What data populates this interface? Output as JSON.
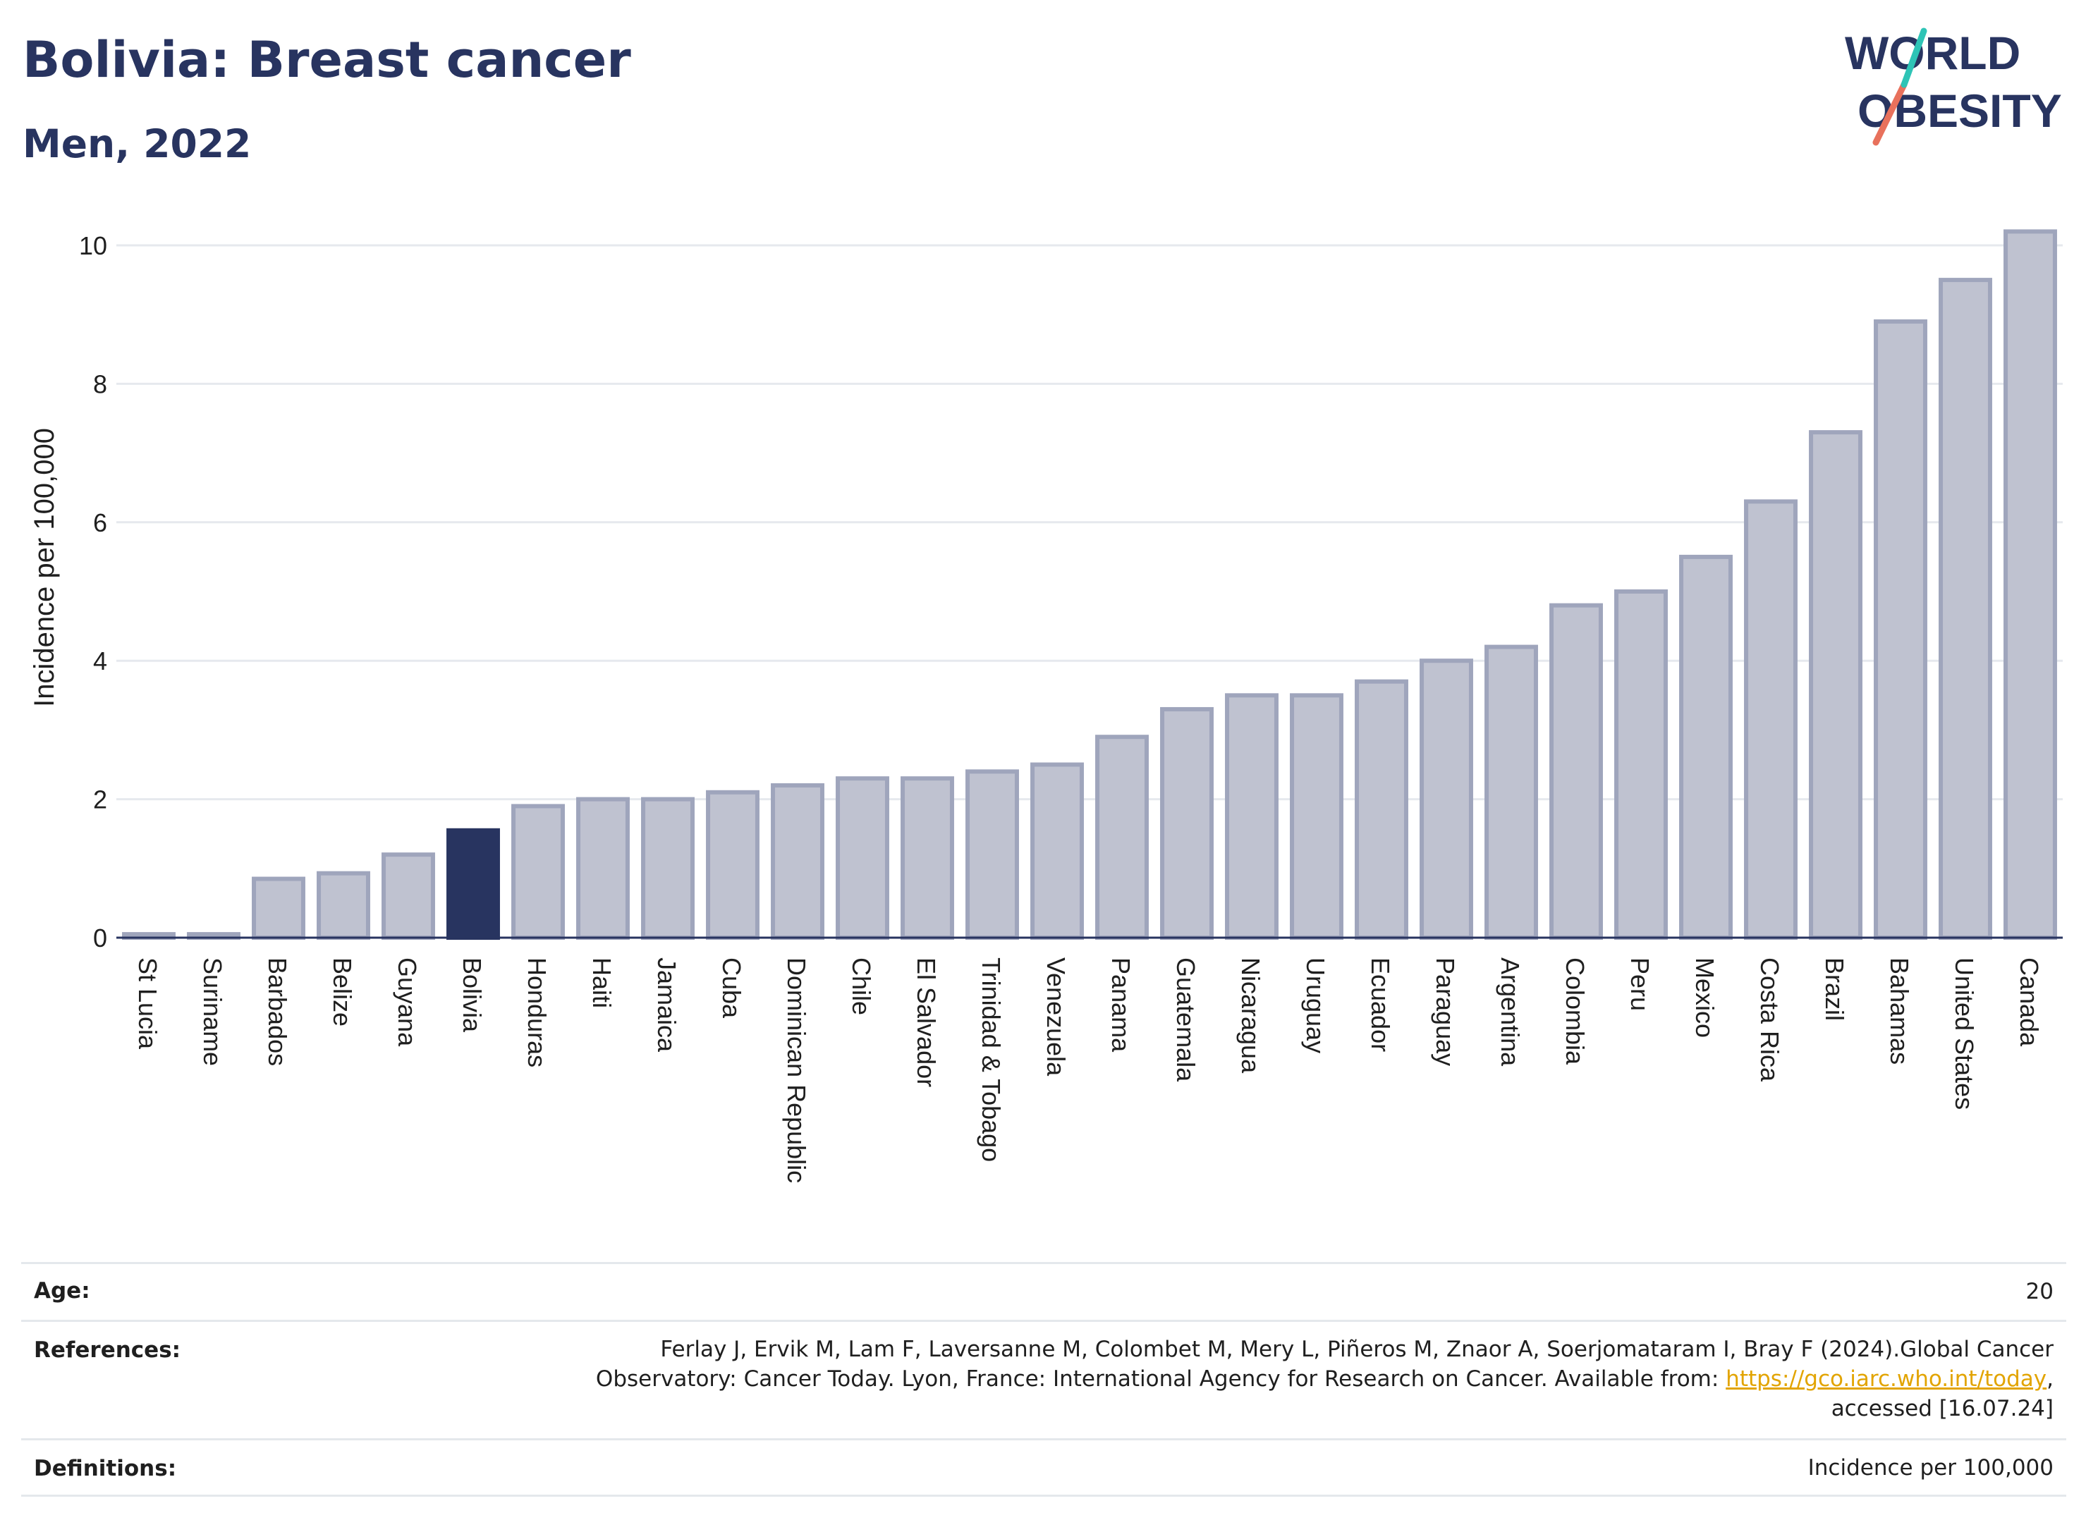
{
  "header": {
    "title": "Bolivia: Breast cancer",
    "subtitle": "Men, 2022"
  },
  "logo": {
    "line1": "WORLD",
    "line2": "OBESITY"
  },
  "colors": {
    "highlight": "#283460",
    "bar_fill": "#bfc2d0",
    "bar_stroke": "#9fa5bc",
    "grid": "#e6e9ee",
    "accent_teal": "#2ec4b6",
    "accent_coral": "#e8715c"
  },
  "chart_data": {
    "type": "bar",
    "title": "Bolivia: Breast cancer",
    "subtitle": "Men, 2022",
    "ylabel": "Incidence per 100,000",
    "xlabel": "",
    "ylim": [
      0,
      10.5
    ],
    "yticks": [
      0,
      2,
      4,
      6,
      8,
      10
    ],
    "grid": true,
    "highlight": "Bolivia",
    "categories": [
      "St Lucia",
      "Suriname",
      "Barbados",
      "Belize",
      "Guyana",
      "Bolivia",
      "Honduras",
      "Haiti",
      "Jamaica",
      "Cuba",
      "Dominican Republic",
      "Chile",
      "El Salvador",
      "Trinidad & Tobago",
      "Venezuela",
      "Panama",
      "Guatemala",
      "Nicaragua",
      "Uruguay",
      "Ecuador",
      "Paraguay",
      "Argentina",
      "Colombia",
      "Peru",
      "Mexico",
      "Costa Rica",
      "Brazil",
      "Bahamas",
      "United States",
      "Canada"
    ],
    "values": [
      0.05,
      0.05,
      0.85,
      0.93,
      1.2,
      1.55,
      1.9,
      2.0,
      2.0,
      2.1,
      2.2,
      2.3,
      2.3,
      2.4,
      2.5,
      2.9,
      3.3,
      3.5,
      3.5,
      3.7,
      4.0,
      4.2,
      4.8,
      5.0,
      5.5,
      6.3,
      7.3,
      8.9,
      9.5,
      10.2
    ]
  },
  "info": {
    "age_label": "Age:",
    "age_value": "20",
    "references_label": "References:",
    "references_line1": "Ferlay J, Ervik M, Lam F, Laversanne M, Colombet M, Mery L, Piñeros M, Znaor A, Soerjomataram I, Bray F (2024).Global Cancer",
    "references_line2_pre": "Observatory: Cancer Today. Lyon, France: International Agency for Research on Cancer. Available from: ",
    "references_link": "https://gco.iarc.who.int/today",
    "references_line2_post": ",",
    "references_line3": "accessed [16.07.24]",
    "definitions_label": "Definitions:",
    "definitions_value": "Incidence per 100,000"
  }
}
